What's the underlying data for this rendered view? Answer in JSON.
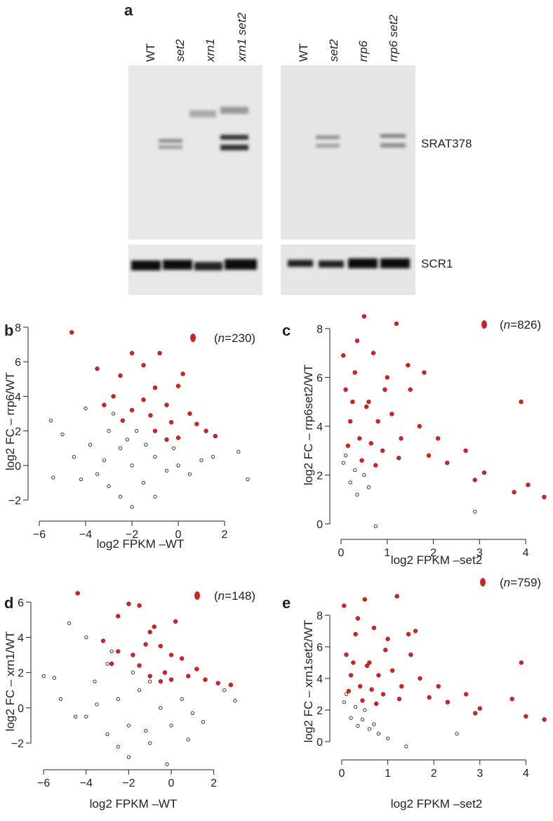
{
  "panels": [
    "a",
    "b",
    "c",
    "d",
    "e"
  ],
  "blot": {
    "left_lanes": [
      {
        "label": "WT",
        "italic": false
      },
      {
        "label": "set2",
        "italic": true
      },
      {
        "label": "xrn1",
        "italic": true
      },
      {
        "label": "xrn1 set2",
        "italic": true
      }
    ],
    "right_lanes": [
      {
        "label": "WT",
        "italic": false
      },
      {
        "label": "set2",
        "italic": true
      },
      {
        "label": "rrp6",
        "italic": true
      },
      {
        "label": "rrp6 set2",
        "italic": true
      }
    ],
    "bands": [
      "SRAT378",
      "SCR1"
    ]
  },
  "chart_data": [
    {
      "type": "scatter",
      "xlabel": "log2 FPKM –WT",
      "ylabel": "log2 FC – rrp6/WT",
      "annotation": [
        "(",
        "n",
        "=230)"
      ],
      "xlim": [
        -6.2,
        3.2
      ],
      "ylim": [
        -2.8,
        8.2
      ],
      "xticks": [
        {
          "value": -6,
          "label": "−6"
        },
        {
          "value": -4,
          "label": "−4"
        },
        {
          "value": -2,
          "label": "−2"
        },
        0,
        2
      ],
      "yticks": [
        {
          "value": -2,
          "label": "−2"
        },
        0,
        2,
        4,
        6,
        8
      ],
      "series": [
        {
          "color": "#222222",
          "filled": false,
          "x": [
            -5.5,
            -5,
            -4.5,
            -4,
            -3.5,
            -3,
            -2.5,
            -2,
            -1.5,
            -1,
            -0.5,
            0,
            0.5,
            1,
            -2.5,
            -3,
            -4.2,
            -2,
            -1.8,
            -3.8,
            -1,
            2.6,
            3,
            1.5,
            -5.4,
            -2.8,
            -2.2,
            -1.4,
            -3.2,
            -0.2
          ],
          "y": [
            2.6,
            1.8,
            0.5,
            3.3,
            -0.5,
            2,
            1,
            0,
            -1,
            0.5,
            -0.3,
            0,
            -0.5,
            0.3,
            -1.8,
            -1.2,
            -0.8,
            -2.4,
            2,
            1.2,
            -1.8,
            0.8,
            -0.8,
            0.5,
            -0.7,
            3,
            1.5,
            1.2,
            0.3,
            1
          ]
        },
        {
          "color": "#c62828",
          "filled": true,
          "x": [
            -4.6,
            -3.5,
            -2.5,
            -2,
            -1.5,
            -0.8,
            -1,
            -2.8,
            -3.2,
            -2,
            -1.5,
            -0.5,
            0,
            0.5,
            -0.3,
            0.8,
            1.2,
            1.6,
            -1,
            -0.5,
            0,
            -2.4,
            0.2,
            -1.2
          ],
          "y": [
            7.7,
            5.6,
            5.2,
            6.5,
            5.8,
            6.5,
            4.5,
            4,
            3.5,
            3.2,
            3.8,
            3.5,
            4.6,
            3,
            2.5,
            2.4,
            2,
            1.7,
            2,
            1.5,
            1.6,
            2.6,
            5.3,
            2.9
          ]
        }
      ]
    },
    {
      "type": "scatter",
      "xlabel": "log2 FPKM –set2",
      "ylabel": "log2 FC – rrp6set2/WT",
      "annotation": [
        "(",
        "n",
        "=826)"
      ],
      "xlim": [
        -0.1,
        4.5
      ],
      "ylim": [
        -0.3,
        8.6
      ],
      "xticks": [
        0,
        1,
        2,
        3,
        4
      ],
      "yticks": [
        0,
        2,
        4,
        6,
        8
      ],
      "series": [
        {
          "color": "#222222",
          "filled": false,
          "x": [
            0.05,
            0.2,
            0.35,
            0.5,
            0.6,
            0.1,
            0.3,
            0.75,
            2.9,
            0.45
          ],
          "y": [
            2.5,
            1.7,
            1.2,
            2,
            1.5,
            2.8,
            2.2,
            -0.1,
            0.5,
            2.6
          ]
        },
        {
          "color": "#c62828",
          "filled": true,
          "x": [
            0.05,
            0.1,
            0.2,
            0.3,
            0.4,
            0.5,
            0.6,
            0.7,
            0.8,
            0.9,
            1,
            1.1,
            1.2,
            1.3,
            1.5,
            1.7,
            1.9,
            2.1,
            2.3,
            0.15,
            0.35,
            0.55,
            0.75,
            0.95,
            1.25,
            1.45,
            0.25,
            0.65,
            3.1,
            3.75,
            3.9,
            4.4,
            4.05,
            2.9,
            2.7,
            0.45,
            1.8
          ],
          "y": [
            6.9,
            5.5,
            4.2,
            6.2,
            3.5,
            8.5,
            5,
            7,
            4.2,
            3,
            6,
            4.5,
            8.2,
            3.5,
            5.5,
            4,
            2.8,
            3.5,
            2.5,
            3.2,
            7.5,
            4.8,
            2.4,
            5.5,
            2.7,
            6.5,
            5,
            3.3,
            2.1,
            1.3,
            5,
            1.1,
            1.6,
            1.8,
            3,
            2.6,
            6.2
          ]
        }
      ]
    },
    {
      "type": "scatter",
      "xlabel": "log2 FPKM –WT",
      "ylabel": "log2 FC – xrn1/WT",
      "annotation": [
        "(",
        "n",
        "=148)"
      ],
      "xlim": [
        -6.2,
        3.2
      ],
      "ylim": [
        -3.2,
        6.6
      ],
      "xticks": [
        {
          "value": -6,
          "label": "−6"
        },
        {
          "value": -4,
          "label": "−4"
        },
        {
          "value": -2,
          "label": "−2"
        },
        0,
        2
      ],
      "yticks": [
        {
          "value": -2,
          "label": "−2"
        },
        0,
        2,
        4,
        6
      ],
      "series": [
        {
          "color": "#222222",
          "filled": false,
          "x": [
            -6,
            -5.2,
            -4.8,
            -4.5,
            -4,
            -3.6,
            -3,
            -2.5,
            -2,
            -1.5,
            -1,
            -0.5,
            0,
            0.5,
            1,
            -2.5,
            -3,
            -4,
            -2,
            -1.8,
            -3.5,
            -1,
            2.5,
            3,
            1.5,
            -5.5,
            -2.8,
            -1.2,
            0.8,
            -0.2
          ],
          "y": [
            1.8,
            0.5,
            4.8,
            -0.5,
            4,
            1.5,
            2.5,
            0.5,
            -1,
            1,
            -2,
            0,
            -1,
            0.5,
            -0.3,
            -2.2,
            -1.5,
            -0.5,
            -2.8,
            2,
            0.2,
            1.5,
            1,
            0.4,
            -0.8,
            1.7,
            3.2,
            -1.3,
            -1.8,
            -3.2
          ]
        },
        {
          "color": "#c62828",
          "filled": true,
          "x": [
            -4.4,
            -3.2,
            -2.5,
            -2,
            -1.5,
            -0.8,
            -1,
            -2.5,
            -2.8,
            -1.8,
            -1.5,
            -0.5,
            0,
            0.5,
            -0.3,
            0.8,
            1.2,
            1.6,
            2.2,
            2.8,
            -1,
            -0.5,
            0,
            0.2,
            -1.2
          ],
          "y": [
            6.5,
            3.8,
            5.2,
            5.9,
            5.8,
            4.6,
            4.3,
            3.2,
            2.5,
            3,
            2.4,
            3.5,
            3,
            2.8,
            2,
            1.8,
            2.2,
            1.6,
            1.4,
            1.3,
            1.8,
            1.5,
            1.6,
            4.9,
            3.6
          ]
        }
      ]
    },
    {
      "type": "scatter",
      "xlabel": "log2 FPKM –set2",
      "ylabel": "log2 FC – xrn1set2/WT",
      "annotation": [
        "(",
        "n",
        "=759)"
      ],
      "xlim": [
        -0.1,
        4.5
      ],
      "ylim": [
        -0.6,
        9.6
      ],
      "xticks": [
        0,
        1,
        2,
        3,
        4
      ],
      "yticks": [
        0,
        2,
        4,
        6,
        8
      ],
      "series": [
        {
          "color": "#222222",
          "filled": false,
          "x": [
            0.05,
            0.2,
            0.35,
            0.5,
            0.6,
            0.1,
            0.3,
            0.8,
            2.5,
            0.45,
            1,
            1.4,
            0.7
          ],
          "y": [
            2.5,
            1.5,
            1,
            2,
            0.8,
            3,
            2.2,
            0.5,
            0.5,
            1.4,
            0.2,
            -0.3,
            1.1
          ]
        },
        {
          "color": "#c62828",
          "filled": true,
          "x": [
            0.05,
            0.1,
            0.2,
            0.3,
            0.4,
            0.5,
            0.6,
            0.7,
            0.8,
            0.9,
            1,
            1.1,
            1.2,
            1.3,
            1.5,
            1.7,
            1.9,
            2.1,
            2.3,
            0.15,
            0.35,
            0.55,
            0.75,
            0.95,
            1.25,
            1.45,
            0.25,
            0.65,
            3,
            3.7,
            3.9,
            4.4,
            4,
            2.9,
            2.7,
            0.45,
            1.6
          ],
          "y": [
            8.6,
            5.5,
            4.2,
            6.8,
            3.5,
            9,
            5,
            7.2,
            4.2,
            3,
            6.5,
            4.5,
            9.2,
            3.5,
            5.5,
            4,
            2.8,
            3.5,
            2.5,
            3.2,
            7.8,
            4.8,
            2.4,
            5.8,
            2.7,
            6.8,
            5,
            3.3,
            2.1,
            2.7,
            5,
            1.4,
            1.6,
            1.8,
            3,
            2.6,
            7
          ]
        }
      ]
    }
  ]
}
